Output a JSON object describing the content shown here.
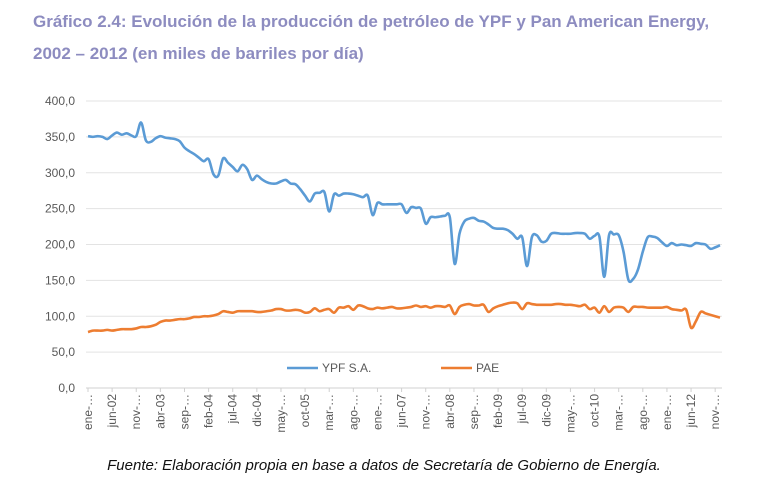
{
  "title_line1": "Gráfico 2.4: Evolución de la producción de petróleo de YPF y Pan American Energy,",
  "title_line2": "2002 – 2012 (en miles de barriles por día)",
  "footer": "Fuente: Elaboración propia en base a datos de Secretaría de Gobierno de Energía.",
  "chart_data": {
    "type": "line",
    "ylim": [
      0,
      400
    ],
    "yticks": [
      "0,0",
      "50,0",
      "100,0",
      "150,0",
      "200,0",
      "250,0",
      "300,0",
      "350,0",
      "400,0"
    ],
    "xtick_labels": [
      "ene-…",
      "jun-02",
      "nov-…",
      "abr-03",
      "sep-…",
      "feb-04",
      "jul-04",
      "dic-04",
      "may-…",
      "oct-05",
      "mar-…",
      "ago-…",
      "ene-…",
      "jun-07",
      "nov-…",
      "abr-08",
      "sep-…",
      "feb-09",
      "jul-09",
      "dic-09",
      "may-…",
      "oct-10",
      "mar-…",
      "ago-…",
      "ene-…",
      "jun-12",
      "nov-…"
    ],
    "x_period": "monthly, ene-2002 to dic-2012",
    "grid": true,
    "legend": "bottom",
    "series": [
      {
        "name": "YPF S.A.",
        "color": "#5b9bd5",
        "values": [
          351,
          350,
          351,
          350,
          347,
          352,
          356,
          353,
          355,
          352,
          351,
          370,
          345,
          343,
          348,
          351,
          349,
          348,
          347,
          344,
          335,
          330,
          326,
          321,
          316,
          319,
          298,
          296,
          320,
          314,
          308,
          302,
          311,
          305,
          290,
          296,
          291,
          287,
          285,
          285,
          288,
          290,
          285,
          284,
          277,
          268,
          260,
          271,
          272,
          273,
          246,
          270,
          268,
          271,
          271,
          270,
          268,
          266,
          268,
          241,
          258,
          256,
          256,
          256,
          256,
          256,
          244,
          252,
          251,
          250,
          229,
          238,
          238,
          239,
          240,
          238,
          173,
          215,
          232,
          236,
          237,
          233,
          232,
          228,
          223,
          222,
          222,
          220,
          215,
          208,
          210,
          170,
          210,
          213,
          204,
          205,
          215,
          216,
          215,
          215,
          215,
          216,
          216,
          215,
          208,
          212,
          211,
          155,
          213,
          214,
          213,
          190,
          151,
          152,
          165,
          190,
          210,
          211,
          209,
          203,
          198,
          202,
          199,
          200,
          199,
          198,
          202,
          201,
          200,
          194,
          196,
          199
        ]
      },
      {
        "name": "PAE",
        "color": "#ed7d31",
        "values": [
          78,
          80,
          80,
          80,
          81,
          80,
          81,
          82,
          82,
          82,
          83,
          85,
          85,
          86,
          88,
          92,
          94,
          94,
          95,
          96,
          96,
          97,
          99,
          99,
          100,
          100,
          101,
          103,
          107,
          106,
          105,
          107,
          107,
          107,
          107,
          106,
          106,
          107,
          108,
          110,
          110,
          108,
          108,
          109,
          108,
          105,
          106,
          111,
          107,
          109,
          110,
          105,
          112,
          112,
          114,
          109,
          115,
          114,
          111,
          110,
          112,
          111,
          112,
          113,
          111,
          111,
          112,
          113,
          115,
          113,
          114,
          112,
          114,
          114,
          113,
          115,
          103,
          113,
          116,
          117,
          115,
          115,
          116,
          106,
          111,
          114,
          116,
          118,
          119,
          118,
          110,
          118,
          117,
          116,
          116,
          116,
          116,
          117,
          117,
          116,
          116,
          115,
          114,
          116,
          110,
          112,
          105,
          114,
          106,
          112,
          113,
          112,
          106,
          113,
          113,
          113,
          112,
          112,
          112,
          112,
          113,
          110,
          109,
          108,
          109,
          84,
          93,
          106,
          104,
          102,
          100,
          98
        ]
      }
    ]
  }
}
